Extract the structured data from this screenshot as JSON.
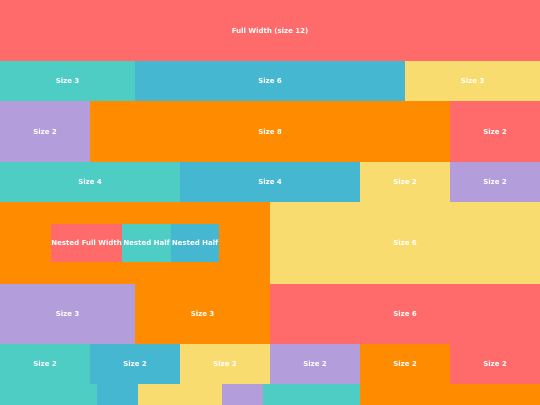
{
  "rows": [
    {
      "cells": [
        "Full Width (size 12)"
      ]
    },
    {
      "cells": [
        "Size 3",
        "Size 6",
        "Size 3"
      ]
    },
    {
      "cells": [
        "Size 2",
        "Size 8",
        "Size 2"
      ]
    },
    {
      "cells": [
        "Size 4",
        "Size 4",
        "Size 2",
        "Size 2"
      ]
    },
    {
      "nested": [
        "Nested Full Width",
        "Nested Half",
        "Nested Half"
      ],
      "cells": [
        "Size 6"
      ]
    },
    {
      "cells": [
        "Size 3",
        "Size 3",
        "Size 6"
      ]
    },
    {
      "cells": [
        "Size 2",
        "Size 2",
        "Size 2",
        "Size 2",
        "Size 2",
        "Size 2"
      ]
    }
  ]
}
